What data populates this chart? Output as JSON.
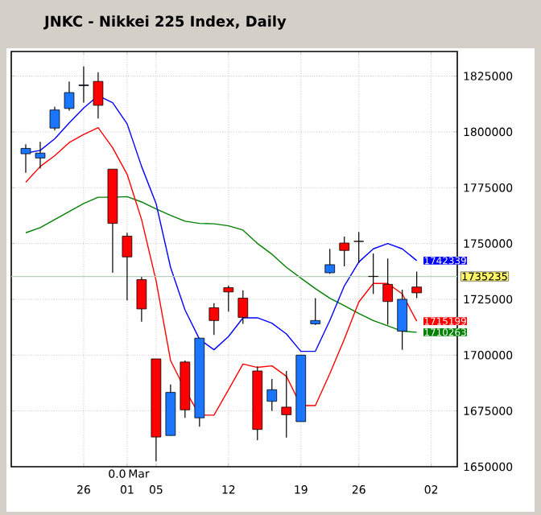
{
  "chart_data": {
    "type": "candlestick",
    "title": "JNKC - Nikkei 225 Index, Daily",
    "categories": [
      null,
      null,
      null,
      null,
      "26",
      null,
      null,
      "01",
      null,
      "05",
      null,
      null,
      null,
      null,
      "12",
      null,
      null,
      null,
      null,
      "19",
      null,
      null,
      null,
      "26",
      null,
      null,
      null,
      null,
      "02"
    ],
    "ylim": [
      1650000,
      1836000
    ],
    "yticks": [
      1650000,
      1675000,
      1700000,
      1725000,
      1750000,
      1775000,
      1800000,
      1825000
    ],
    "grid": true,
    "marker": "none",
    "series": [
      {
        "type": "line",
        "color": "#008000",
        "values": [
          1754800,
          1757100,
          1760700,
          1764300,
          1767900,
          1770700,
          1770700,
          1771000,
          1768600,
          1765500,
          1762600,
          1760000,
          1759000,
          1758800,
          1757900,
          1756000,
          1750000,
          1745200,
          1739300,
          1734500,
          1729800,
          1725500,
          1722100,
          1718600,
          1715500,
          1713100,
          1710700,
          1710263,
          null
        ],
        "value_labels": [
          null,
          null,
          null,
          null,
          null,
          null,
          null,
          null,
          null,
          null,
          null,
          null,
          null,
          null,
          null,
          null,
          null,
          null,
          null,
          null,
          null,
          null,
          null,
          null,
          null,
          null,
          null,
          "1710263",
          null
        ]
      },
      {
        "type": "line",
        "color": "#ff0000",
        "values": [
          1777400,
          1784500,
          1789300,
          1795200,
          1798800,
          1801900,
          1792900,
          1781000,
          1760700,
          1733300,
          1697600,
          1684500,
          1673100,
          1673100,
          1684500,
          1696000,
          1694500,
          1695200,
          1690500,
          1677400,
          1677400,
          1691700,
          1707100,
          1723800,
          1732100,
          1732100,
          1727400,
          1715199,
          null
        ],
        "value_labels": [
          null,
          null,
          null,
          null,
          null,
          null,
          null,
          null,
          null,
          null,
          null,
          null,
          null,
          null,
          null,
          null,
          null,
          null,
          null,
          null,
          null,
          null,
          null,
          null,
          null,
          null,
          null,
          "1715199",
          null
        ]
      },
      {
        "type": "line",
        "color": "#0000ff",
        "values": [
          1790500,
          1791700,
          1796900,
          1804000,
          1810700,
          1816200,
          1813100,
          1803600,
          1784500,
          1767900,
          1739300,
          1720200,
          1707100,
          1702400,
          1708300,
          1716700,
          1716700,
          1714300,
          1709500,
          1701700,
          1701700,
          1715500,
          1731000,
          1741700,
          1747600,
          1750000,
          1747600,
          1742339,
          null
        ],
        "value_labels": [
          null,
          null,
          null,
          null,
          null,
          null,
          null,
          null,
          null,
          null,
          null,
          null,
          null,
          null,
          null,
          null,
          null,
          null,
          null,
          null,
          null,
          null,
          null,
          null,
          null,
          null,
          null,
          "1742339",
          null
        ]
      },
      {
        "ohlc": [
          [
            1790200,
            1794500,
            1781700,
            1792600
          ],
          [
            1788300,
            1795500,
            1783600,
            1790500
          ],
          [
            1801700,
            1811200,
            1800700,
            1809800
          ],
          [
            1810500,
            1822600,
            1809500,
            1817600
          ],
          [
            1821000,
            1829300,
            1813100,
            1820700
          ],
          [
            1822600,
            1826700,
            1806000,
            1811900
          ],
          [
            1783300,
            1783300,
            1736900,
            1759000
          ],
          [
            1753300,
            1754800,
            1724500,
            1744000
          ],
          [
            1733800,
            1735000,
            1715000,
            1720700
          ],
          [
            1698300,
            1698300,
            1652400,
            1663300
          ],
          [
            1664000,
            1686900,
            1664000,
            1683300
          ],
          [
            1696900,
            1697600,
            1671900,
            1675500
          ],
          [
            1671900,
            1707600,
            1667900,
            1707600
          ],
          [
            1721200,
            1723300,
            1709000,
            1715500
          ],
          [
            1730200,
            1731200,
            1719500,
            1728300
          ],
          [
            1725500,
            1729000,
            1714000,
            1716900
          ],
          [
            1692900,
            1695000,
            1661900,
            1666700
          ],
          [
            1679300,
            1689300,
            1675000,
            1684500
          ],
          [
            1676700,
            1692900,
            1663100,
            1673300
          ],
          [
            1670200,
            1700000,
            1670200,
            1700000
          ],
          [
            1714000,
            1725500,
            1713500,
            1715500
          ],
          [
            1736900,
            1747600,
            1736400,
            1740500
          ],
          [
            1750200,
            1753100,
            1739800,
            1746900
          ],
          [
            1751000,
            1755200,
            1741200,
            1750900
          ],
          [
            1735300,
            1745500,
            1727400,
            1735200
          ],
          [
            1731700,
            1743300,
            1713600,
            1724000
          ],
          [
            1710700,
            1729300,
            1702400,
            1725000
          ],
          [
            1730500,
            1737400,
            1725500,
            1727900
          ],
          null
        ],
        "colors": [
          "#1a75ff",
          "#1a75ff",
          "#1a75ff",
          "#1a75ff",
          "#1a75ff",
          "#ff0000",
          "#ff0000",
          "#ff0000",
          "#ff0000",
          "#ff0000",
          "#1a75ff",
          "#ff0000",
          "#1a75ff",
          "#ff0000",
          "#ff0000",
          "#ff0000",
          "#ff0000",
          "#1a75ff",
          "#ff0000",
          "#1a75ff",
          "#1a75ff",
          "#1a75ff",
          "#ff0000",
          "#ff0000",
          "#ff0000",
          "#ff0000",
          "#1a75ff",
          "#ff0000",
          null
        ]
      }
    ],
    "ref_lines": [
      {
        "axis": "y",
        "value": 1735235,
        "label": "1735235",
        "color": "#b8d0b8"
      }
    ],
    "annotations": [
      "0.0",
      "Mar"
    ]
  }
}
